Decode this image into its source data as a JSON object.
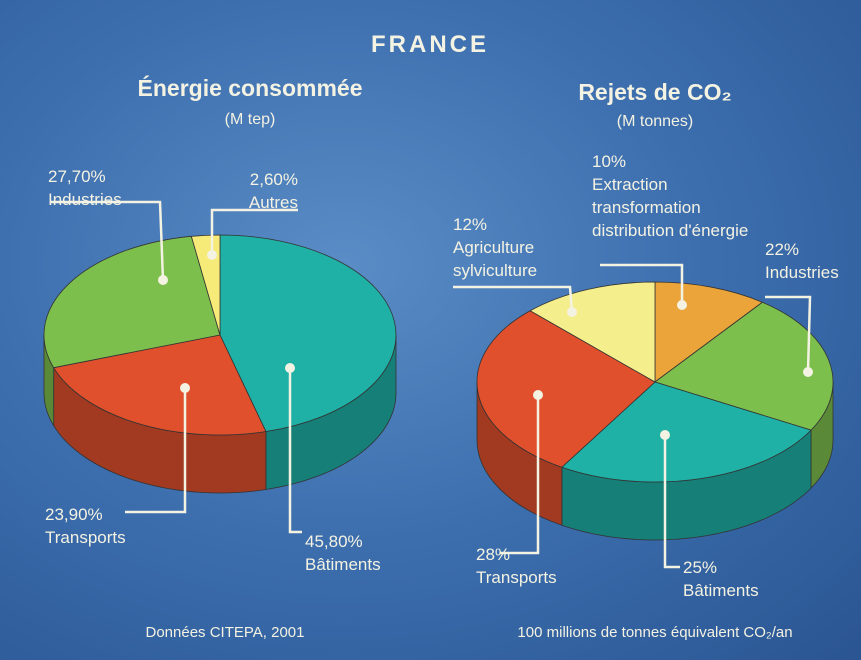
{
  "title": "FRANCE",
  "chart_data": [
    {
      "type": "pie",
      "title": "Énergie consommée",
      "subtitle": "(M tep)",
      "categories": [
        "Bâtiments",
        "Transports",
        "Industries",
        "Autres"
      ],
      "values": [
        45.8,
        23.9,
        27.7,
        2.6
      ],
      "value_labels": [
        "45,80%",
        "23,90%",
        "27,70%",
        "2,60%"
      ],
      "colors": [
        "#1fb0a6",
        "#e0502c",
        "#7dbf4c",
        "#f6ea78"
      ],
      "footer": "Données CITEPA, 2001"
    },
    {
      "type": "pie",
      "title": "Rejets de CO₂",
      "subtitle": "(M tonnes)",
      "categories": [
        "Extraction transformation distribution d'énergie",
        "Industries",
        "Bâtiments",
        "Transports",
        "Agriculture sylviculture"
      ],
      "values": [
        10,
        22,
        25,
        28,
        12
      ],
      "value_labels": [
        "10%",
        "22%",
        "25%",
        "28%",
        "12%"
      ],
      "colors": [
        "#eba43a",
        "#7dbf4c",
        "#1fb0a6",
        "#e0502c",
        "#f4ee8c"
      ],
      "footer": "100 millions de tonnes équivalent CO₂/an"
    }
  ]
}
